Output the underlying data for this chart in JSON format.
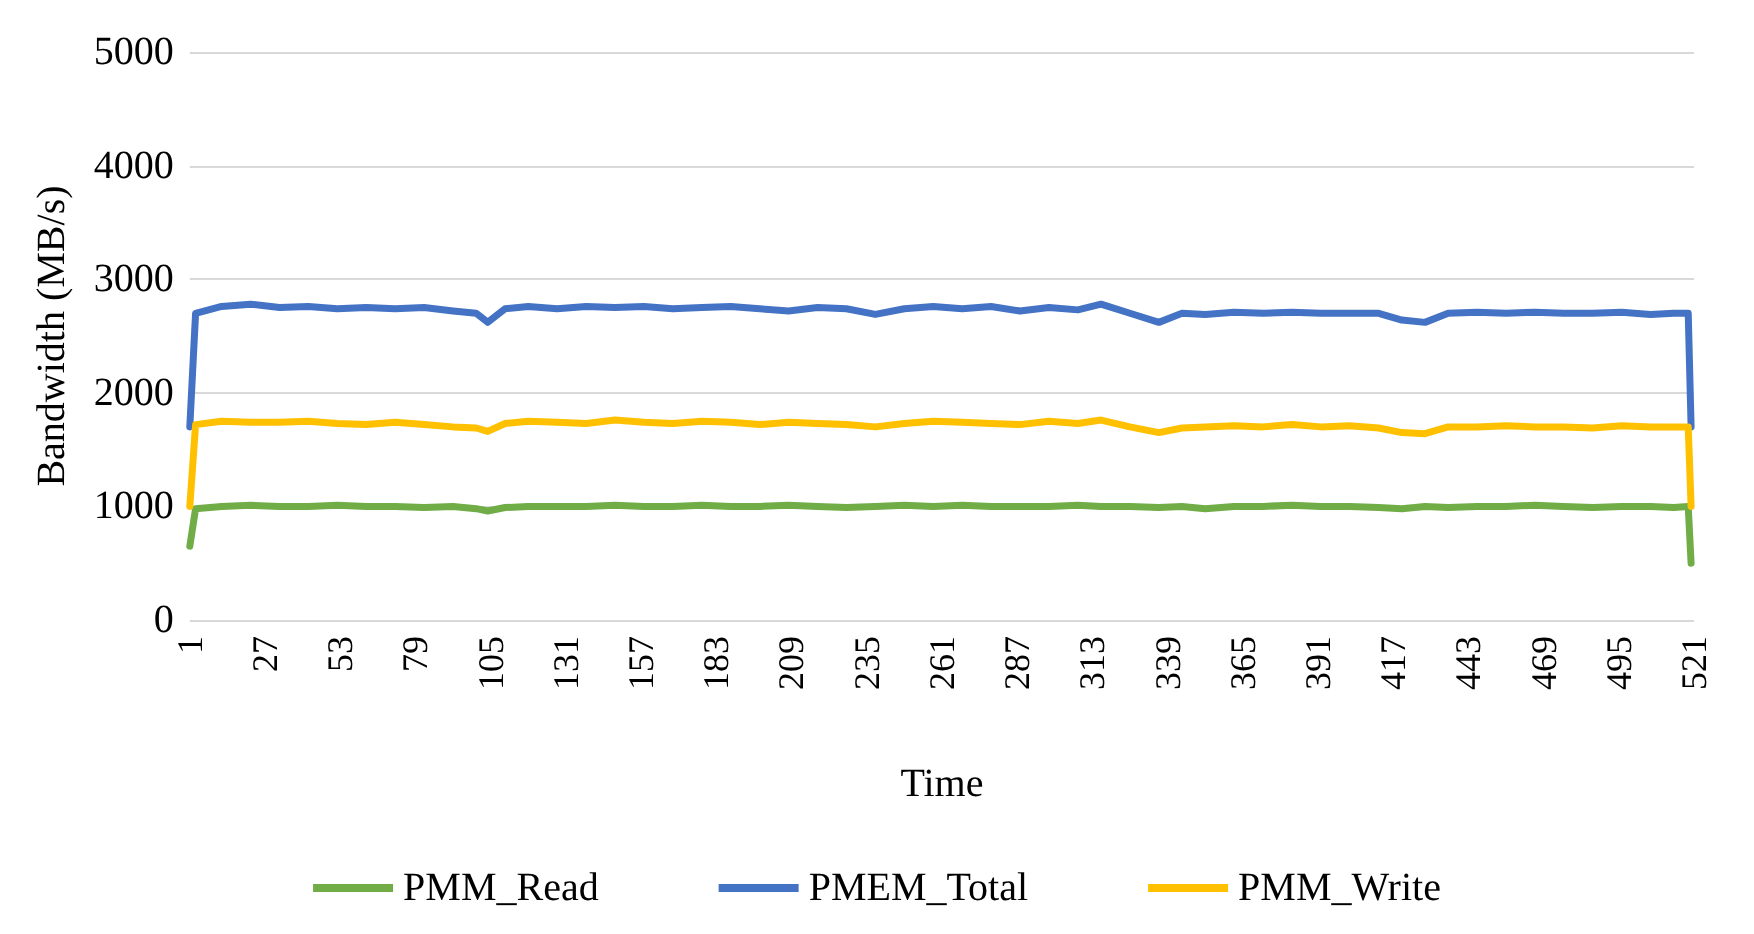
{
  "chart_data": {
    "type": "line",
    "xlabel": "Time",
    "ylabel": "Bandwidth (MB/s)",
    "x": [
      1,
      3,
      12,
      22,
      32,
      42,
      52,
      62,
      72,
      82,
      92,
      100,
      104,
      110,
      118,
      128,
      138,
      148,
      158,
      168,
      178,
      188,
      198,
      208,
      218,
      228,
      238,
      248,
      258,
      268,
      278,
      288,
      298,
      308,
      316,
      326,
      336,
      344,
      352,
      362,
      372,
      382,
      392,
      402,
      412,
      420,
      428,
      436,
      446,
      456,
      466,
      476,
      486,
      496,
      506,
      514,
      519,
      520
    ],
    "series": [
      {
        "name": "PMM_Read",
        "color": "#70ad47",
        "values": [
          650,
          980,
          1000,
          1010,
          1000,
          1000,
          1010,
          1000,
          1000,
          990,
          1000,
          980,
          960,
          990,
          1000,
          1000,
          1000,
          1010,
          1000,
          1000,
          1010,
          1000,
          1000,
          1010,
          1000,
          990,
          1000,
          1010,
          1000,
          1010,
          1000,
          1000,
          1000,
          1010,
          1000,
          1000,
          990,
          1000,
          980,
          1000,
          1000,
          1010,
          1000,
          1000,
          990,
          980,
          1000,
          990,
          1000,
          1000,
          1010,
          1000,
          990,
          1000,
          1000,
          990,
          1000,
          500
        ]
      },
      {
        "name": "PMEM_Total",
        "color": "#4472c4",
        "values": [
          1700,
          2700,
          2760,
          2780,
          2750,
          2760,
          2740,
          2750,
          2740,
          2750,
          2720,
          2700,
          2620,
          2740,
          2760,
          2740,
          2760,
          2750,
          2760,
          2740,
          2750,
          2760,
          2740,
          2720,
          2750,
          2740,
          2690,
          2740,
          2760,
          2740,
          2760,
          2720,
          2750,
          2730,
          2780,
          2700,
          2620,
          2700,
          2690,
          2710,
          2700,
          2710,
          2700,
          2700,
          2700,
          2640,
          2620,
          2700,
          2710,
          2700,
          2710,
          2700,
          2700,
          2710,
          2690,
          2700,
          2700,
          1700
        ]
      },
      {
        "name": "PMM_Write",
        "color": "#ffc000",
        "values": [
          1000,
          1720,
          1750,
          1740,
          1740,
          1750,
          1730,
          1720,
          1740,
          1720,
          1700,
          1690,
          1660,
          1730,
          1750,
          1740,
          1730,
          1760,
          1740,
          1730,
          1750,
          1740,
          1720,
          1740,
          1730,
          1720,
          1700,
          1730,
          1750,
          1740,
          1730,
          1720,
          1750,
          1730,
          1760,
          1700,
          1650,
          1690,
          1700,
          1710,
          1700,
          1720,
          1700,
          1710,
          1690,
          1650,
          1640,
          1700,
          1700,
          1710,
          1700,
          1700,
          1690,
          1710,
          1700,
          1700,
          1700,
          1000
        ]
      }
    ],
    "xlim": [
      1,
      521
    ],
    "xticks": [
      1,
      27,
      53,
      79,
      105,
      131,
      157,
      183,
      209,
      235,
      261,
      287,
      313,
      339,
      365,
      391,
      417,
      443,
      469,
      495,
      521
    ],
    "ylim": [
      0,
      5000
    ],
    "yticks": [
      0,
      1000,
      2000,
      3000,
      4000,
      5000
    ],
    "grid": "y",
    "legend": "bottom",
    "marker": "none",
    "line_style": "solid"
  }
}
